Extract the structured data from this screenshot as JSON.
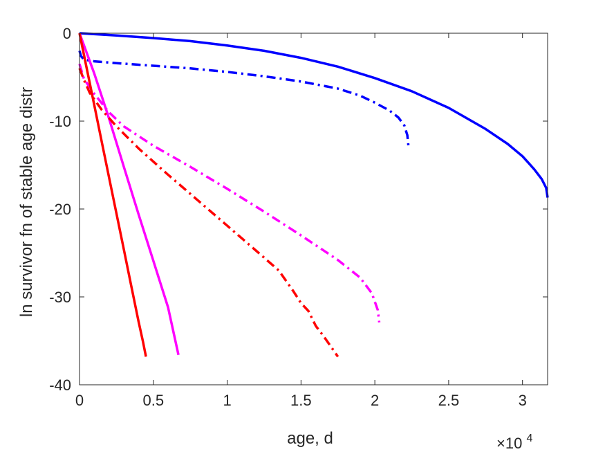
{
  "chart_data": {
    "type": "line",
    "title": "",
    "xlabel": "age, d",
    "ylabel": "ln survivor fn of stable age distr",
    "x_multiplier_base": "×10",
    "x_multiplier_exp": "4",
    "xlim": [
      0,
      31700
    ],
    "ylim": [
      -40,
      0
    ],
    "xticks": [
      0,
      5000,
      10000,
      15000,
      20000,
      25000,
      30000
    ],
    "xtick_labels": [
      "0",
      "0.5",
      "1",
      "1.5",
      "2",
      "2.5",
      "3"
    ],
    "yticks": [
      0,
      -10,
      -20,
      -30,
      -40
    ],
    "ytick_labels": [
      "0",
      "-10",
      "-20",
      "-30",
      "-40"
    ],
    "grid": false,
    "legend": "none",
    "series": [
      {
        "color": "#0000ff",
        "style": "solid",
        "x": [
          0,
          2500,
          5000,
          7500,
          10000,
          12500,
          15000,
          17500,
          20000,
          22500,
          25000,
          27500,
          29000,
          30000,
          30800,
          31300,
          31600,
          31700
        ],
        "y": [
          0,
          -0.25,
          -0.55,
          -0.9,
          -1.4,
          -2.0,
          -2.8,
          -3.8,
          -5.1,
          -6.6,
          -8.5,
          -10.9,
          -12.6,
          -14.0,
          -15.5,
          -16.6,
          -17.6,
          -18.7
        ]
      },
      {
        "color": "#0000ff",
        "style": "dashdot",
        "x": [
          0,
          100,
          300,
          1000,
          2500,
          5000,
          7500,
          10000,
          12500,
          15000,
          17500,
          19000,
          20000,
          21000,
          21600,
          22000,
          22200,
          22300
        ],
        "y": [
          -2.0,
          -2.6,
          -3.0,
          -3.2,
          -3.4,
          -3.7,
          -4.0,
          -4.4,
          -4.9,
          -5.5,
          -6.3,
          -7.1,
          -7.9,
          -8.8,
          -9.6,
          -10.5,
          -11.6,
          -13.2
        ]
      },
      {
        "color": "#ff00ff",
        "style": "solid",
        "x": [
          0,
          1000,
          2000,
          3000,
          4000,
          5000,
          6000,
          6700
        ],
        "y": [
          0,
          -4.6,
          -9.7,
          -15.2,
          -20.6,
          -25.9,
          -31.2,
          -36.6
        ]
      },
      {
        "color": "#ff00ff",
        "style": "dashdot",
        "x": [
          0,
          300,
          1000,
          2000,
          3000,
          5000,
          7500,
          10000,
          12500,
          15000,
          17500,
          19000,
          19800,
          20200,
          20300
        ],
        "y": [
          -3.5,
          -5.2,
          -6.9,
          -9.0,
          -10.6,
          -12.8,
          -15.2,
          -17.7,
          -20.3,
          -23.0,
          -25.8,
          -27.8,
          -29.6,
          -31.5,
          -32.9
        ]
      },
      {
        "color": "#ff0000",
        "style": "solid",
        "x": [
          0,
          500,
          1000,
          1500,
          2000,
          2500,
          3000,
          3500,
          4000,
          4300,
          4500
        ],
        "y": [
          0,
          -4.1,
          -8.2,
          -12.3,
          -16.4,
          -20.5,
          -24.6,
          -28.7,
          -32.8,
          -35.1,
          -36.8
        ]
      },
      {
        "color": "#ff0000",
        "style": "dashdot",
        "x": [
          0,
          300,
          700,
          1500,
          2500,
          4000,
          6000,
          8000,
          10000,
          12000,
          13500,
          14500,
          15000,
          15500,
          16000,
          16500,
          17000,
          17500
        ],
        "y": [
          -4.0,
          -5.3,
          -6.8,
          -8.7,
          -10.6,
          -13.1,
          -16.1,
          -19.0,
          -21.9,
          -24.8,
          -27.0,
          -29.4,
          -30.7,
          -31.6,
          -33.3,
          -34.4,
          -35.6,
          -36.8
        ]
      }
    ]
  }
}
